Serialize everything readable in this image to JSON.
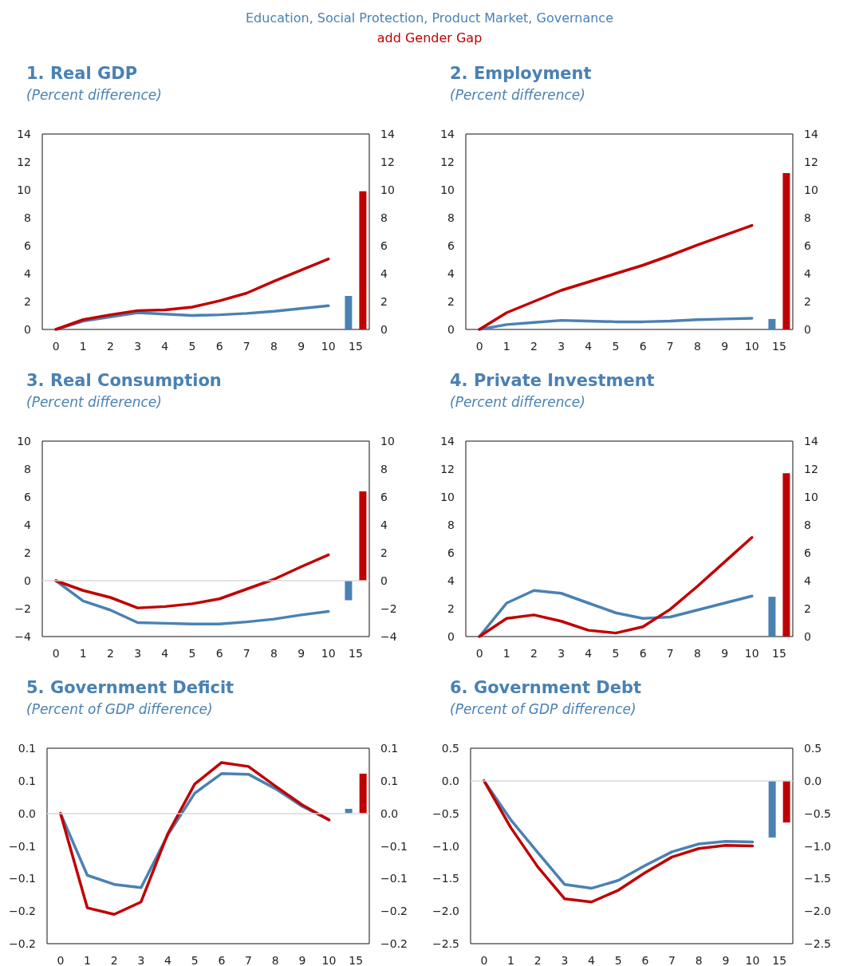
{
  "chart_data": [
    {
      "type": "line",
      "title": "1. Real GDP",
      "subtitle": "(Percent difference)",
      "legend": "top",
      "grid": false,
      "categories": [
        "0",
        "1",
        "2",
        "3",
        "4",
        "5",
        "6",
        "7",
        "8",
        "9",
        "10",
        "15"
      ],
      "ylim": [
        0,
        14
      ],
      "yticks": [
        0,
        2,
        4,
        6,
        8,
        10,
        12,
        14
      ],
      "y2lim": [
        0,
        14
      ],
      "y2ticks": [
        0,
        2,
        4,
        6,
        8,
        10,
        12,
        14
      ],
      "series": [
        {
          "name": "Education, Social Protection, Product Market, Governance",
          "color": "#4a81b3",
          "values": [
            0,
            0.6,
            0.9,
            1.2,
            1.1,
            1.0,
            1.05,
            1.15,
            1.3,
            1.5,
            1.7,
            null
          ]
        },
        {
          "name": "add Gender Gap",
          "color": "#c00000",
          "values": [
            0,
            0.7,
            1.05,
            1.35,
            1.4,
            1.6,
            2.05,
            2.6,
            3.45,
            4.25,
            5.05,
            null
          ]
        },
        {
          "type": "bar",
          "color": "#4a81b3",
          "values": [
            null,
            null,
            null,
            null,
            null,
            null,
            null,
            null,
            null,
            null,
            null,
            2.4
          ]
        },
        {
          "type": "bar",
          "color": "#c00000",
          "values": [
            null,
            null,
            null,
            null,
            null,
            null,
            null,
            null,
            null,
            null,
            null,
            9.9
          ]
        }
      ]
    },
    {
      "type": "line",
      "title": "2. Employment",
      "subtitle": "(Percent difference)",
      "grid": false,
      "categories": [
        "0",
        "1",
        "2",
        "3",
        "4",
        "5",
        "6",
        "7",
        "8",
        "9",
        "10",
        "15"
      ],
      "ylim": [
        0,
        14
      ],
      "yticks": [
        0,
        2,
        4,
        6,
        8,
        10,
        12,
        14
      ],
      "y2lim": [
        0,
        14
      ],
      "y2ticks": [
        0,
        2,
        4,
        6,
        8,
        10,
        12,
        14
      ],
      "series": [
        {
          "color": "#4a81b3",
          "values": [
            0,
            0.35,
            0.5,
            0.65,
            0.6,
            0.55,
            0.55,
            0.6,
            0.7,
            0.75,
            0.8,
            null
          ]
        },
        {
          "color": "#c00000",
          "values": [
            0,
            1.2,
            2.0,
            2.8,
            3.4,
            4.0,
            4.6,
            5.3,
            6.05,
            6.75,
            7.45,
            null
          ]
        },
        {
          "type": "bar",
          "color": "#4a81b3",
          "values": [
            null,
            null,
            null,
            null,
            null,
            null,
            null,
            null,
            null,
            null,
            null,
            0.75
          ]
        },
        {
          "type": "bar",
          "color": "#c00000",
          "values": [
            null,
            null,
            null,
            null,
            null,
            null,
            null,
            null,
            null,
            null,
            null,
            11.2
          ]
        }
      ]
    },
    {
      "type": "line",
      "title": "3. Real Consumption",
      "subtitle": "(Percent difference)",
      "grid": false,
      "categories": [
        "0",
        "1",
        "2",
        "3",
        "4",
        "5",
        "6",
        "7",
        "8",
        "9",
        "10",
        "15"
      ],
      "ylim": [
        -4,
        10
      ],
      "yticks": [
        {
          "value": -4,
          "label": "−4"
        },
        {
          "value": -2,
          "label": "−2"
        },
        0,
        2,
        4,
        6,
        8,
        10
      ],
      "y2lim": [
        -4,
        10
      ],
      "y2ticks": [
        {
          "value": -4,
          "label": "−4"
        },
        {
          "value": -2,
          "label": "−2"
        },
        0,
        2,
        4,
        6,
        8,
        10
      ],
      "ref_lines": [
        {
          "axis": "y",
          "value": 0,
          "color": "#d9d9d9"
        }
      ],
      "series": [
        {
          "color": "#4a81b3",
          "values": [
            0,
            -1.45,
            -2.1,
            -3.0,
            -3.05,
            -3.1,
            -3.1,
            -2.95,
            -2.75,
            -2.45,
            -2.2,
            null
          ]
        },
        {
          "color": "#c00000",
          "values": [
            0,
            -0.7,
            -1.2,
            -1.95,
            -1.85,
            -1.65,
            -1.3,
            -0.6,
            0.1,
            1.0,
            1.85,
            null
          ]
        },
        {
          "type": "bar",
          "color": "#4a81b3",
          "values": [
            null,
            null,
            null,
            null,
            null,
            null,
            null,
            null,
            null,
            null,
            null,
            -1.4
          ]
        },
        {
          "type": "bar",
          "color": "#c00000",
          "values": [
            null,
            null,
            null,
            null,
            null,
            null,
            null,
            null,
            null,
            null,
            null,
            6.4
          ]
        }
      ]
    },
    {
      "type": "line",
      "title": "4. Private Investment",
      "subtitle": "(Percent difference)",
      "grid": false,
      "categories": [
        "0",
        "1",
        "2",
        "3",
        "4",
        "5",
        "6",
        "7",
        "8",
        "9",
        "10",
        "15"
      ],
      "ylim": [
        0,
        14
      ],
      "yticks": [
        0,
        2,
        4,
        6,
        8,
        10,
        12,
        14
      ],
      "y2lim": [
        0,
        14
      ],
      "y2ticks": [
        0,
        2,
        4,
        6,
        8,
        10,
        12,
        14
      ],
      "series": [
        {
          "color": "#4a81b3",
          "values": [
            0,
            2.4,
            3.3,
            3.1,
            2.4,
            1.7,
            1.3,
            1.4,
            1.9,
            2.4,
            2.9,
            null
          ]
        },
        {
          "color": "#c00000",
          "values": [
            0,
            1.3,
            1.55,
            1.1,
            0.45,
            0.25,
            0.7,
            1.95,
            3.6,
            5.35,
            7.1,
            null
          ]
        },
        {
          "type": "bar",
          "color": "#4a81b3",
          "values": [
            null,
            null,
            null,
            null,
            null,
            null,
            null,
            null,
            null,
            null,
            null,
            2.85
          ]
        },
        {
          "type": "bar",
          "color": "#c00000",
          "values": [
            null,
            null,
            null,
            null,
            null,
            null,
            null,
            null,
            null,
            null,
            null,
            11.7
          ]
        }
      ]
    },
    {
      "type": "line",
      "title": "5. Government Deficit",
      "subtitle": "(Percent of GDP difference)",
      "grid": false,
      "categories": [
        "0",
        "1",
        "2",
        "3",
        "4",
        "5",
        "6",
        "7",
        "8",
        "9",
        "10",
        "15"
      ],
      "ylim": [
        -0.2,
        0.1
      ],
      "yticks": [
        {
          "value": -0.2,
          "label": "−0.2"
        },
        {
          "value": -0.15,
          "label": "−0.2"
        },
        {
          "value": -0.1,
          "label": "−0.1"
        },
        {
          "value": -0.05,
          "label": "−0.1"
        },
        {
          "value": 0,
          "label": "0.0"
        },
        {
          "value": 0.05,
          "label": "0.1"
        },
        0.1
      ],
      "y2lim": [
        -0.2,
        0.1
      ],
      "y2ticks": [
        {
          "value": -0.2,
          "label": "−0.2"
        },
        {
          "value": -0.15,
          "label": "−0.2"
        },
        {
          "value": -0.1,
          "label": "−0.1"
        },
        {
          "value": -0.05,
          "label": "−0.1"
        },
        {
          "value": 0,
          "label": "0.0"
        },
        {
          "value": 0.05,
          "label": "0.1"
        },
        0.1
      ],
      "ref_lines": [
        {
          "axis": "y",
          "value": 0,
          "color": "#d9d9d9"
        }
      ],
      "series": [
        {
          "color": "#4a81b3",
          "values": [
            0,
            -0.095,
            -0.109,
            -0.114,
            -0.033,
            0.031,
            0.061,
            0.06,
            0.038,
            0.011,
            -0.01,
            null
          ]
        },
        {
          "color": "#c00000",
          "values": [
            0,
            -0.145,
            -0.155,
            -0.136,
            -0.031,
            0.045,
            0.078,
            0.072,
            0.042,
            0.013,
            -0.01,
            null
          ]
        },
        {
          "type": "bar",
          "color": "#4a81b3",
          "values": [
            null,
            null,
            null,
            null,
            null,
            null,
            null,
            null,
            null,
            null,
            null,
            0.007
          ]
        },
        {
          "type": "bar",
          "color": "#c00000",
          "values": [
            null,
            null,
            null,
            null,
            null,
            null,
            null,
            null,
            null,
            null,
            null,
            0.061
          ]
        }
      ]
    },
    {
      "type": "line",
      "title": "6. Government Debt",
      "subtitle": "(Percent of GDP difference)",
      "grid": false,
      "categories": [
        "0",
        "1",
        "2",
        "3",
        "4",
        "5",
        "6",
        "7",
        "8",
        "9",
        "10",
        "15"
      ],
      "ylim": [
        -2.5,
        0.5
      ],
      "yticks": [
        {
          "value": -2.5,
          "label": "−2.5"
        },
        {
          "value": -2,
          "label": "−2.0"
        },
        {
          "value": -1.5,
          "label": "−1.5"
        },
        {
          "value": -1,
          "label": "−1.0"
        },
        {
          "value": -0.5,
          "label": "−0.5"
        },
        {
          "value": 0,
          "label": "0.0"
        },
        0.5
      ],
      "y2lim": [
        -2.5,
        0.5
      ],
      "y2ticks": [
        {
          "value": -2.5,
          "label": "−2.5"
        },
        {
          "value": -2,
          "label": "−2.0"
        },
        {
          "value": -1.5,
          "label": "−1.5"
        },
        {
          "value": -1,
          "label": "−1.0"
        },
        {
          "value": -0.5,
          "label": "−0.5"
        },
        {
          "value": 0,
          "label": "0.0"
        },
        0.5
      ],
      "ref_lines": [
        {
          "axis": "y",
          "value": 0,
          "color": "#d9d9d9"
        }
      ],
      "series": [
        {
          "color": "#4a81b3",
          "values": [
            0,
            -0.6,
            -1.1,
            -1.59,
            -1.65,
            -1.53,
            -1.3,
            -1.09,
            -0.97,
            -0.93,
            -0.94,
            null
          ]
        },
        {
          "color": "#c00000",
          "values": [
            0,
            -0.72,
            -1.32,
            -1.81,
            -1.86,
            -1.68,
            -1.41,
            -1.17,
            -1.04,
            -0.99,
            -1.0,
            null
          ]
        },
        {
          "type": "bar",
          "color": "#4a81b3",
          "values": [
            null,
            null,
            null,
            null,
            null,
            null,
            null,
            null,
            null,
            null,
            null,
            -0.87
          ]
        },
        {
          "type": "bar",
          "color": "#c00000",
          "values": [
            null,
            null,
            null,
            null,
            null,
            null,
            null,
            null,
            null,
            null,
            null,
            -0.64
          ]
        }
      ]
    }
  ]
}
